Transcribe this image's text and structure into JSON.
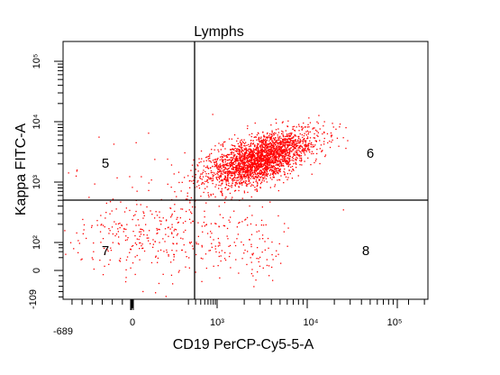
{
  "chart_data": {
    "type": "scatter",
    "title": "Lymphs",
    "xlabel": "CD19 PerCP-Cy5-5-A",
    "ylabel": "Kappa FITC-A",
    "x_scale": "biexponential",
    "y_scale": "biexponential",
    "xlim": [
      -689,
      200000
    ],
    "ylim": [
      -109,
      200000
    ],
    "x_ticks": [
      {
        "label": "-689",
        "value": -689
      },
      {
        "label": "0",
        "value": 0
      },
      {
        "label": "10³",
        "value": 1000
      },
      {
        "label": "10⁴",
        "value": 10000
      },
      {
        "label": "10⁵",
        "value": 100000
      }
    ],
    "y_ticks": [
      {
        "label": "-109",
        "value": -109
      },
      {
        "label": "0",
        "value": 0
      },
      {
        "label": "10²",
        "value": 100
      },
      {
        "label": "10³",
        "value": 1000
      },
      {
        "label": "10⁴",
        "value": 10000
      },
      {
        "label": "10⁵",
        "value": 100000
      }
    ],
    "gates": {
      "x_threshold": 600,
      "y_threshold": 400
    },
    "quadrants": [
      {
        "label": "5",
        "position": "upper-left"
      },
      {
        "label": "6",
        "position": "upper-right"
      },
      {
        "label": "7",
        "position": "lower-left"
      },
      {
        "label": "8",
        "position": "lower-right"
      }
    ],
    "point_color": "#ff0000",
    "populations": [
      {
        "quadrant": "6",
        "center": [
          3000,
          2500
        ],
        "spread_decades": [
          0.3,
          0.25
        ],
        "events": 2600
      },
      {
        "quadrant": "7",
        "center": [
          30,
          120
        ],
        "spread_decades": [
          0.55,
          0.35
        ],
        "events": 380
      },
      {
        "quadrant": "8",
        "center": [
          2500,
          80
        ],
        "spread_decades": [
          0.15,
          0.3
        ],
        "events": 60
      },
      {
        "quadrant": "5",
        "center": [
          20,
          1200
        ],
        "spread_decades": [
          0.7,
          0.5
        ],
        "events": 45
      }
    ]
  }
}
